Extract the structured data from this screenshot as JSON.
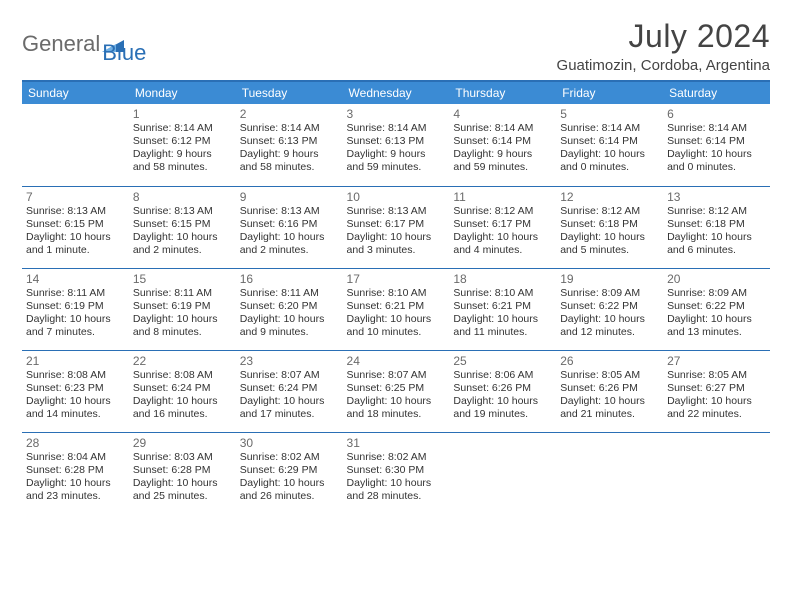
{
  "brand": {
    "text1": "General",
    "text2": "Blue"
  },
  "title": "July 2024",
  "location": "Guatimozin, Cordoba, Argentina",
  "colors": {
    "accent": "#3b8bd4",
    "rule": "#2a6fb5",
    "text": "#333333",
    "muted": "#6a6a6a"
  },
  "weekdays": [
    "Sunday",
    "Monday",
    "Tuesday",
    "Wednesday",
    "Thursday",
    "Friday",
    "Saturday"
  ],
  "weeks": [
    [
      null,
      {
        "n": "1",
        "sr": "8:14 AM",
        "ss": "6:12 PM",
        "dl": "9 hours and 58 minutes."
      },
      {
        "n": "2",
        "sr": "8:14 AM",
        "ss": "6:13 PM",
        "dl": "9 hours and 58 minutes."
      },
      {
        "n": "3",
        "sr": "8:14 AM",
        "ss": "6:13 PM",
        "dl": "9 hours and 59 minutes."
      },
      {
        "n": "4",
        "sr": "8:14 AM",
        "ss": "6:14 PM",
        "dl": "9 hours and 59 minutes."
      },
      {
        "n": "5",
        "sr": "8:14 AM",
        "ss": "6:14 PM",
        "dl": "10 hours and 0 minutes."
      },
      {
        "n": "6",
        "sr": "8:14 AM",
        "ss": "6:14 PM",
        "dl": "10 hours and 0 minutes."
      }
    ],
    [
      {
        "n": "7",
        "sr": "8:13 AM",
        "ss": "6:15 PM",
        "dl": "10 hours and 1 minute."
      },
      {
        "n": "8",
        "sr": "8:13 AM",
        "ss": "6:15 PM",
        "dl": "10 hours and 2 minutes."
      },
      {
        "n": "9",
        "sr": "8:13 AM",
        "ss": "6:16 PM",
        "dl": "10 hours and 2 minutes."
      },
      {
        "n": "10",
        "sr": "8:13 AM",
        "ss": "6:17 PM",
        "dl": "10 hours and 3 minutes."
      },
      {
        "n": "11",
        "sr": "8:12 AM",
        "ss": "6:17 PM",
        "dl": "10 hours and 4 minutes."
      },
      {
        "n": "12",
        "sr": "8:12 AM",
        "ss": "6:18 PM",
        "dl": "10 hours and 5 minutes."
      },
      {
        "n": "13",
        "sr": "8:12 AM",
        "ss": "6:18 PM",
        "dl": "10 hours and 6 minutes."
      }
    ],
    [
      {
        "n": "14",
        "sr": "8:11 AM",
        "ss": "6:19 PM",
        "dl": "10 hours and 7 minutes."
      },
      {
        "n": "15",
        "sr": "8:11 AM",
        "ss": "6:19 PM",
        "dl": "10 hours and 8 minutes."
      },
      {
        "n": "16",
        "sr": "8:11 AM",
        "ss": "6:20 PM",
        "dl": "10 hours and 9 minutes."
      },
      {
        "n": "17",
        "sr": "8:10 AM",
        "ss": "6:21 PM",
        "dl": "10 hours and 10 minutes."
      },
      {
        "n": "18",
        "sr": "8:10 AM",
        "ss": "6:21 PM",
        "dl": "10 hours and 11 minutes."
      },
      {
        "n": "19",
        "sr": "8:09 AM",
        "ss": "6:22 PM",
        "dl": "10 hours and 12 minutes."
      },
      {
        "n": "20",
        "sr": "8:09 AM",
        "ss": "6:22 PM",
        "dl": "10 hours and 13 minutes."
      }
    ],
    [
      {
        "n": "21",
        "sr": "8:08 AM",
        "ss": "6:23 PM",
        "dl": "10 hours and 14 minutes."
      },
      {
        "n": "22",
        "sr": "8:08 AM",
        "ss": "6:24 PM",
        "dl": "10 hours and 16 minutes."
      },
      {
        "n": "23",
        "sr": "8:07 AM",
        "ss": "6:24 PM",
        "dl": "10 hours and 17 minutes."
      },
      {
        "n": "24",
        "sr": "8:07 AM",
        "ss": "6:25 PM",
        "dl": "10 hours and 18 minutes."
      },
      {
        "n": "25",
        "sr": "8:06 AM",
        "ss": "6:26 PM",
        "dl": "10 hours and 19 minutes."
      },
      {
        "n": "26",
        "sr": "8:05 AM",
        "ss": "6:26 PM",
        "dl": "10 hours and 21 minutes."
      },
      {
        "n": "27",
        "sr": "8:05 AM",
        "ss": "6:27 PM",
        "dl": "10 hours and 22 minutes."
      }
    ],
    [
      {
        "n": "28",
        "sr": "8:04 AM",
        "ss": "6:28 PM",
        "dl": "10 hours and 23 minutes."
      },
      {
        "n": "29",
        "sr": "8:03 AM",
        "ss": "6:28 PM",
        "dl": "10 hours and 25 minutes."
      },
      {
        "n": "30",
        "sr": "8:02 AM",
        "ss": "6:29 PM",
        "dl": "10 hours and 26 minutes."
      },
      {
        "n": "31",
        "sr": "8:02 AM",
        "ss": "6:30 PM",
        "dl": "10 hours and 28 minutes."
      },
      null,
      null,
      null
    ]
  ],
  "labels": {
    "sunrise": "Sunrise:",
    "sunset": "Sunset:",
    "daylight": "Daylight:"
  }
}
